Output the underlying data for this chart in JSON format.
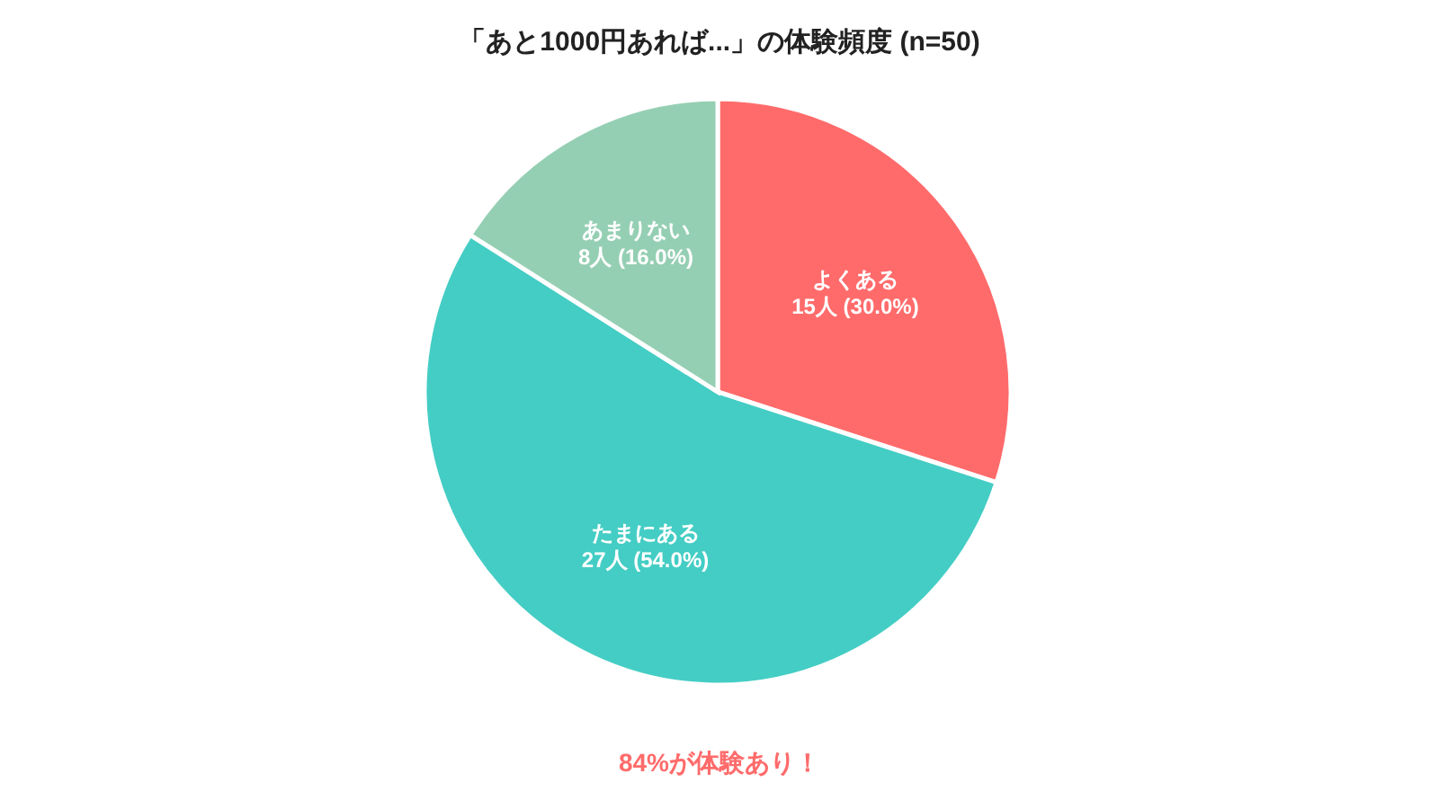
{
  "chart_data": {
    "type": "pie",
    "title": "「あと1000円あれば...」の体験頻度 (n=50)",
    "categories": [
      "よくある",
      "たまにある",
      "あまりない"
    ],
    "values": [
      15,
      27,
      8
    ],
    "colors": [
      "#ff6b6b",
      "#44cdc4",
      "#95cfb3"
    ],
    "value_labels": [
      "15人 (30.0%)",
      "27人 (54.0%)",
      "8人 (16.0%)"
    ],
    "annotations": [
      "84%が体験あり！"
    ],
    "legend": false
  }
}
